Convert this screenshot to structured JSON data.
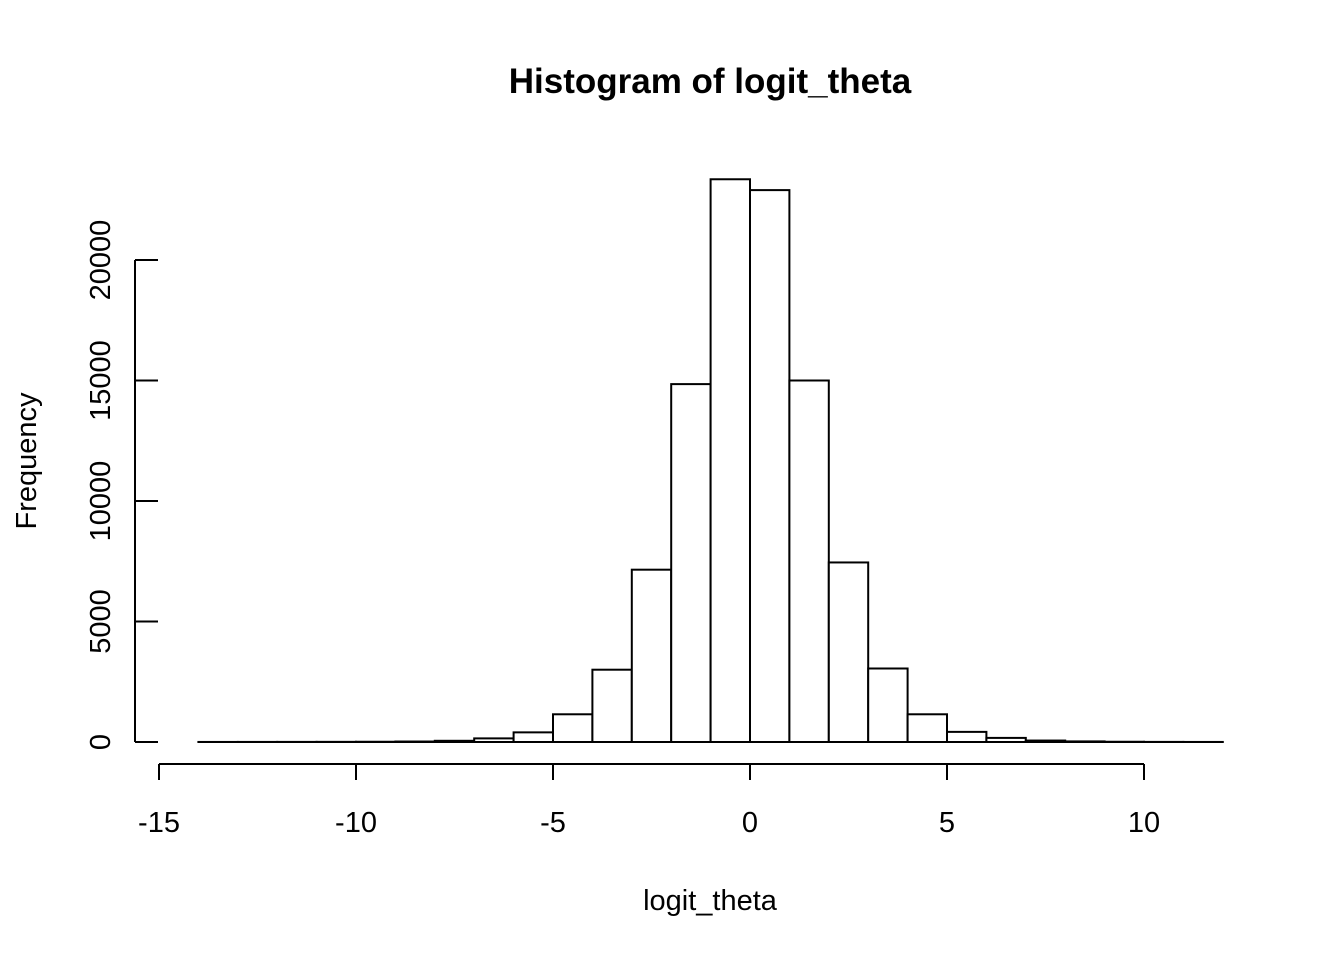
{
  "chart_data": {
    "type": "bar",
    "title": "Histogram of logit_theta",
    "xlabel": "logit_theta",
    "ylabel": "Frequency",
    "bin_width": 1,
    "bins": [
      {
        "x0": -14,
        "x1": -13,
        "count": 2
      },
      {
        "x0": -13,
        "x1": -12,
        "count": 3
      },
      {
        "x0": -12,
        "x1": -11,
        "count": 4
      },
      {
        "x0": -11,
        "x1": -10,
        "count": 6
      },
      {
        "x0": -10,
        "x1": -9,
        "count": 10
      },
      {
        "x0": -9,
        "x1": -8,
        "count": 20
      },
      {
        "x0": -8,
        "x1": -7,
        "count": 50
      },
      {
        "x0": -7,
        "x1": -6,
        "count": 150
      },
      {
        "x0": -6,
        "x1": -5,
        "count": 400
      },
      {
        "x0": -5,
        "x1": -4,
        "count": 1150
      },
      {
        "x0": -4,
        "x1": -3,
        "count": 3000
      },
      {
        "x0": -3,
        "x1": -2,
        "count": 7150
      },
      {
        "x0": -2,
        "x1": -1,
        "count": 14850
      },
      {
        "x0": -1,
        "x1": 0,
        "count": 23350
      },
      {
        "x0": 0,
        "x1": 1,
        "count": 22900
      },
      {
        "x0": 1,
        "x1": 2,
        "count": 15000
      },
      {
        "x0": 2,
        "x1": 3,
        "count": 7450
      },
      {
        "x0": 3,
        "x1": 4,
        "count": 3050
      },
      {
        "x0": 4,
        "x1": 5,
        "count": 1150
      },
      {
        "x0": 5,
        "x1": 6,
        "count": 420
      },
      {
        "x0": 6,
        "x1": 7,
        "count": 170
      },
      {
        "x0": 7,
        "x1": 8,
        "count": 60
      },
      {
        "x0": 8,
        "x1": 9,
        "count": 25
      },
      {
        "x0": 9,
        "x1": 10,
        "count": 10
      },
      {
        "x0": 10,
        "x1": 11,
        "count": 4
      },
      {
        "x0": 11,
        "x1": 12,
        "count": 2
      }
    ],
    "xlim": [
      -15,
      12
    ],
    "ylim": [
      0,
      23350
    ],
    "x_ticks": [
      -15,
      -10,
      -5,
      0,
      5,
      10
    ],
    "x_tick_labels": [
      "-15",
      "-10",
      "-5",
      "0",
      "5",
      "10"
    ],
    "y_ticks": [
      0,
      5000,
      10000,
      15000,
      20000
    ],
    "y_tick_labels": [
      "0",
      "5000",
      "10000",
      "15000",
      "20000"
    ],
    "grid": false,
    "legend": "none"
  }
}
